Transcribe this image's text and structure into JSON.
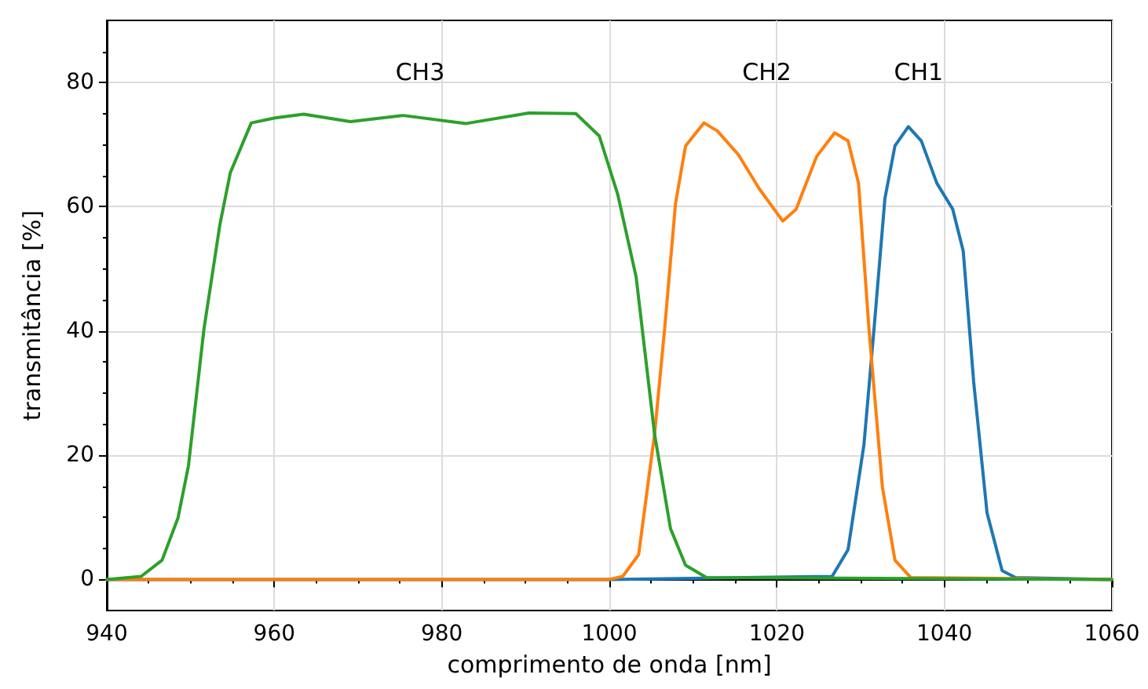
{
  "chart_data": {
    "type": "line",
    "xlabel": "comprimento de onda [nm]",
    "ylabel": "transmitância [%]",
    "xlim": [
      940,
      1060
    ],
    "xticks": [
      940,
      {
        "value": 945,
        "label": null
      },
      {
        "value": 950,
        "label": null
      },
      {
        "value": 955,
        "label": null
      },
      960,
      {
        "value": 965,
        "label": null
      },
      {
        "value": 970,
        "label": null
      },
      {
        "value": 975,
        "label": null
      },
      980,
      {
        "value": 985,
        "label": null
      },
      {
        "value": 990,
        "label": null
      },
      {
        "value": 995,
        "label": null
      },
      1000,
      {
        "value": 1005,
        "label": null
      },
      {
        "value": 1010,
        "label": null
      },
      {
        "value": 1015,
        "label": null
      },
      1020,
      {
        "value": 1025,
        "label": null
      },
      {
        "value": 1030,
        "label": null
      },
      {
        "value": 1035,
        "label": null
      },
      1040,
      {
        "value": 1045,
        "label": null
      },
      {
        "value": 1050,
        "label": null
      },
      {
        "value": 1055,
        "label": null
      },
      1060
    ],
    "ylim": [
      -5,
      90
    ],
    "yticks": [
      0,
      {
        "value": 5,
        "label": null
      },
      {
        "value": 10,
        "label": null
      },
      {
        "value": 15,
        "label": null
      },
      20,
      {
        "value": 25,
        "label": null
      },
      {
        "value": 30,
        "label": null
      },
      {
        "value": 35,
        "label": null
      },
      40,
      {
        "value": 45,
        "label": null
      },
      {
        "value": 50,
        "label": null
      },
      {
        "value": 55,
        "label": null
      },
      60,
      {
        "value": 65,
        "label": null
      },
      {
        "value": 70,
        "label": null
      },
      {
        "value": 75,
        "label": null
      },
      80,
      {
        "value": 85,
        "label": null
      }
    ],
    "grid": true,
    "line_style": "solid",
    "marker": "none",
    "series": [
      {
        "name": "CH1",
        "color": "#1f77b4",
        "x": [
          940,
          1000,
          1026.6,
          1028.5,
          1030.4,
          1031.6,
          1032.9,
          1034.1,
          1035.7,
          1037.25,
          1039.1,
          1041,
          1042.25,
          1043.5,
          1045.1,
          1046.9,
          1048.5,
          1060
        ],
        "values": [
          0,
          0,
          0.5,
          4.8,
          21.7,
          40.3,
          61.3,
          69.8,
          72.9,
          70.6,
          63.8,
          59.6,
          52.9,
          31.8,
          10.7,
          1.4,
          0.3,
          0
        ]
      },
      {
        "name": "CH2",
        "color": "#ff7f0e",
        "x": [
          940,
          1000,
          1001.6,
          1003.5,
          1005.4,
          1006.6,
          1007.9,
          1009.1,
          1011.3,
          1012.9,
          1015.4,
          1017.9,
          1020.7,
          1022.3,
          1024.75,
          1026.9,
          1028.5,
          1029.75,
          1031,
          1032.6,
          1034.1,
          1036,
          1060
        ],
        "values": [
          0,
          0,
          0.5,
          4,
          23.4,
          40.3,
          60.5,
          69.8,
          73.5,
          72.2,
          68.4,
          62.9,
          57.7,
          59.6,
          68.1,
          71.9,
          70.6,
          63.8,
          40.3,
          14.9,
          3.1,
          0.3,
          0
        ]
      },
      {
        "name": "CH3",
        "color": "#2ca02c",
        "x": [
          940,
          944.1,
          946.6,
          948.5,
          949.75,
          951.6,
          953.5,
          954.75,
          957.25,
          960.1,
          963.5,
          969.1,
          975.4,
          982.9,
          990.4,
          996,
          998.8,
          1001,
          1003.2,
          1005.4,
          1007.3,
          1009.1,
          1011.6,
          1060
        ],
        "values": [
          0,
          0.5,
          3.1,
          9.9,
          18.3,
          40.3,
          57.1,
          65.5,
          73.5,
          74.3,
          74.9,
          73.7,
          74.7,
          73.4,
          75.1,
          75,
          71.4,
          62,
          48.7,
          23.4,
          8.2,
          2.3,
          0.3,
          0
        ]
      }
    ]
  }
}
